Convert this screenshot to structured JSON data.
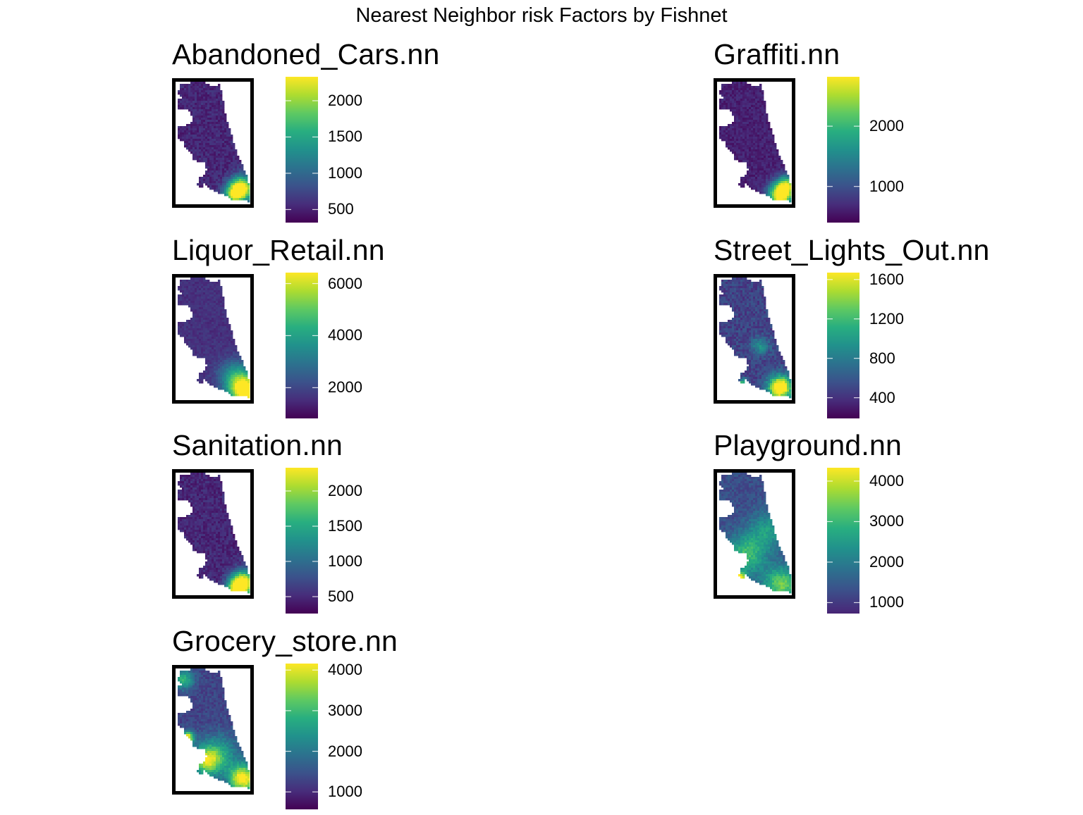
{
  "figure": {
    "title": "Nearest Neighbor risk Factors by Fishnet"
  },
  "colors": {
    "viridis": [
      "#440154",
      "#472d7b",
      "#3b528b",
      "#2c728e",
      "#21918c",
      "#28ae80",
      "#5ec962",
      "#addc30",
      "#fde725"
    ]
  },
  "chart_data": [
    {
      "type": "heatmap",
      "title": "Abandoned_Cars.nn",
      "legend_ticks": [
        500,
        1000,
        1500,
        2000
      ],
      "range": [
        320,
        2330
      ],
      "hotspot": "south"
    },
    {
      "type": "heatmap",
      "title": "Graffiti.nn",
      "legend_ticks": [
        1000,
        2000
      ],
      "range": [
        400,
        2820
      ],
      "hotspot": "south"
    },
    {
      "type": "heatmap",
      "title": "Liquor_Retail.nn",
      "legend_ticks": [
        2000,
        4000,
        6000
      ],
      "range": [
        820,
        6420
      ],
      "hotspot": "south-east"
    },
    {
      "type": "heatmap",
      "title": "Street_Lights_Out.nn",
      "legend_ticks": [
        400,
        800,
        1200,
        1600
      ],
      "range": [
        190,
        1670
      ],
      "hotspot": "south"
    },
    {
      "type": "heatmap",
      "title": "Sanitation.nn",
      "legend_ticks": [
        500,
        1000,
        1500,
        2000
      ],
      "range": [
        260,
        2330
      ],
      "hotspot": "south"
    },
    {
      "type": "heatmap",
      "title": "Playground.nn",
      "legend_ticks": [
        1000,
        2000,
        3000,
        4000
      ],
      "range": [
        330,
        4330
      ],
      "hotspot": "south"
    },
    {
      "type": "heatmap",
      "title": "Grocery_store.nn",
      "legend_ticks": [
        1000,
        2000,
        3000,
        4000
      ],
      "range": [
        570,
        4160
      ],
      "hotspot": "south"
    }
  ]
}
